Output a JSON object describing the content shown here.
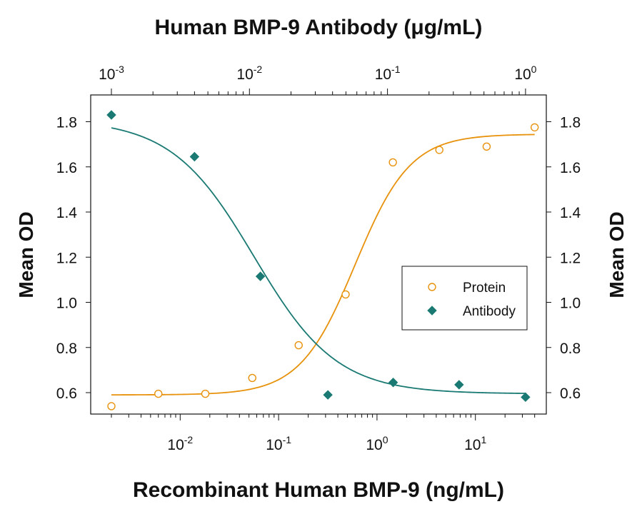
{
  "chart_data": {
    "type": "scatter",
    "top_axis": {
      "label": "Human BMP-9 Antibody (μg/mL)",
      "scale": "log",
      "range": [
        0.001,
        1
      ],
      "ticks": [
        {
          "value": 0.001,
          "base": "10",
          "exp": "-3"
        },
        {
          "value": 0.01,
          "base": "10",
          "exp": "-2"
        },
        {
          "value": 0.1,
          "base": "10",
          "exp": "-1"
        },
        {
          "value": 1,
          "base": "10",
          "exp": "0"
        }
      ]
    },
    "bottom_axis": {
      "label": "Recombinant Human BMP-9 (ng/mL)",
      "scale": "log",
      "range": [
        0.002,
        50
      ],
      "ticks": [
        {
          "value": 0.01,
          "base": "10",
          "exp": "-2"
        },
        {
          "value": 0.1,
          "base": "10",
          "exp": "-1"
        },
        {
          "value": 1,
          "base": "10",
          "exp": "0"
        },
        {
          "value": 10,
          "base": "10",
          "exp": "1"
        }
      ]
    },
    "y_axis": {
      "label_left": "Mean OD",
      "label_right": "Mean OD",
      "range": [
        0.51,
        1.88
      ],
      "ticks": [
        "0.6",
        "0.8",
        "1.0",
        "1.2",
        "1.4",
        "1.6",
        "1.8"
      ]
    },
    "series": [
      {
        "name": "Protein",
        "x_axis": "bottom",
        "marker": "open-circle",
        "color": "#E8920C",
        "points": [
          {
            "x": 0.002,
            "y": 0.54
          },
          {
            "x": 0.006,
            "y": 0.595
          },
          {
            "x": 0.018,
            "y": 0.595
          },
          {
            "x": 0.054,
            "y": 0.665
          },
          {
            "x": 0.16,
            "y": 0.81
          },
          {
            "x": 0.48,
            "y": 1.035
          },
          {
            "x": 1.45,
            "y": 1.62
          },
          {
            "x": 4.3,
            "y": 1.675
          },
          {
            "x": 13,
            "y": 1.69
          },
          {
            "x": 40,
            "y": 1.775
          }
        ],
        "fit": {
          "bottom": 0.59,
          "top": 1.745,
          "ec50": 0.6,
          "hill": 1.55
        }
      },
      {
        "name": "Antibody",
        "x_axis": "top",
        "marker": "filled-diamond",
        "color": "#1A7A73",
        "points": [
          {
            "x": 0.001,
            "y": 1.83
          },
          {
            "x": 0.004,
            "y": 1.645
          },
          {
            "x": 0.012,
            "y": 1.115
          },
          {
            "x": 0.037,
            "y": 0.59
          },
          {
            "x": 0.11,
            "y": 0.645
          },
          {
            "x": 0.33,
            "y": 0.635
          },
          {
            "x": 1,
            "y": 0.58
          }
        ],
        "fit": {
          "bottom": 0.595,
          "top": 1.81,
          "ec50": 0.0108,
          "hill": 1.45
        }
      }
    ],
    "legend": {
      "position": "middle-right",
      "entries": [
        "Protein",
        "Antibody"
      ]
    },
    "grid": false
  }
}
